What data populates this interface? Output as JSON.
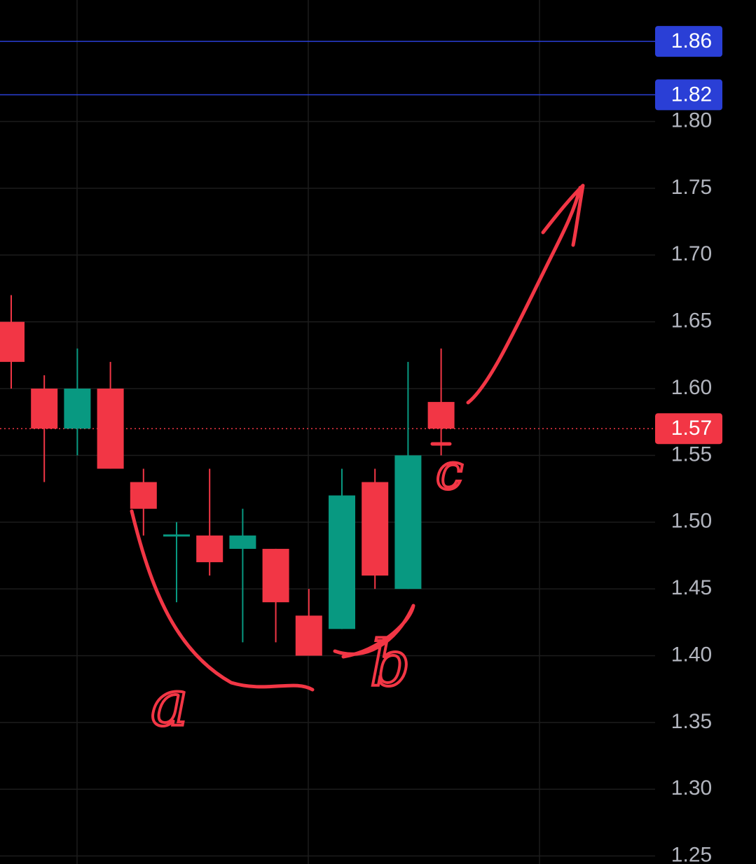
{
  "chart_data": {
    "type": "candlestick",
    "categories": [
      null,
      null,
      null,
      null,
      null,
      null,
      null,
      null,
      null,
      null,
      null,
      null,
      null,
      null
    ],
    "series": [
      {
        "up_color": "#089981",
        "down_color": "#f23645",
        "open": [
          1.65,
          1.6,
          1.57,
          1.6,
          1.53,
          1.49,
          1.49,
          1.48,
          1.48,
          1.43,
          1.42,
          1.53,
          1.45,
          1.59
        ],
        "high": [
          1.67,
          1.61,
          1.63,
          1.62,
          1.54,
          1.5,
          1.54,
          1.51,
          1.48,
          1.45,
          1.54,
          1.54,
          1.62,
          1.63
        ],
        "low": [
          1.6,
          1.53,
          1.55,
          1.54,
          1.49,
          1.44,
          1.46,
          1.41,
          1.41,
          1.4,
          1.42,
          1.45,
          1.45,
          1.55
        ],
        "close": [
          1.62,
          1.57,
          1.6,
          1.54,
          1.51,
          1.49,
          1.47,
          1.49,
          1.44,
          1.4,
          1.52,
          1.46,
          1.55,
          1.57
        ]
      }
    ],
    "ylim": [
      1.244,
      1.891
    ],
    "yticks": [
      {
        "value": 1.25,
        "label": "1.25"
      },
      {
        "value": 1.3,
        "label": "1.30"
      },
      1.35,
      {
        "value": 1.4,
        "label": "1.40"
      },
      1.45,
      {
        "value": 1.5,
        "label": "1.50"
      },
      1.55,
      {
        "value": 1.6,
        "label": "1.60"
      },
      1.65,
      {
        "value": 1.7,
        "label": "1.70"
      },
      1.75,
      {
        "value": 1.8,
        "label": "1.80"
      }
    ],
    "grid": true,
    "price_lines": [
      {
        "value": 1.86,
        "color": "#2a3fd6",
        "style": "solid"
      },
      {
        "value": 1.82,
        "color": "#2a3fd6",
        "style": "solid"
      },
      {
        "value": 1.57,
        "color": "#f23645",
        "style": "dotted"
      }
    ],
    "annotations": [
      "a",
      "b",
      "c"
    ]
  }
}
